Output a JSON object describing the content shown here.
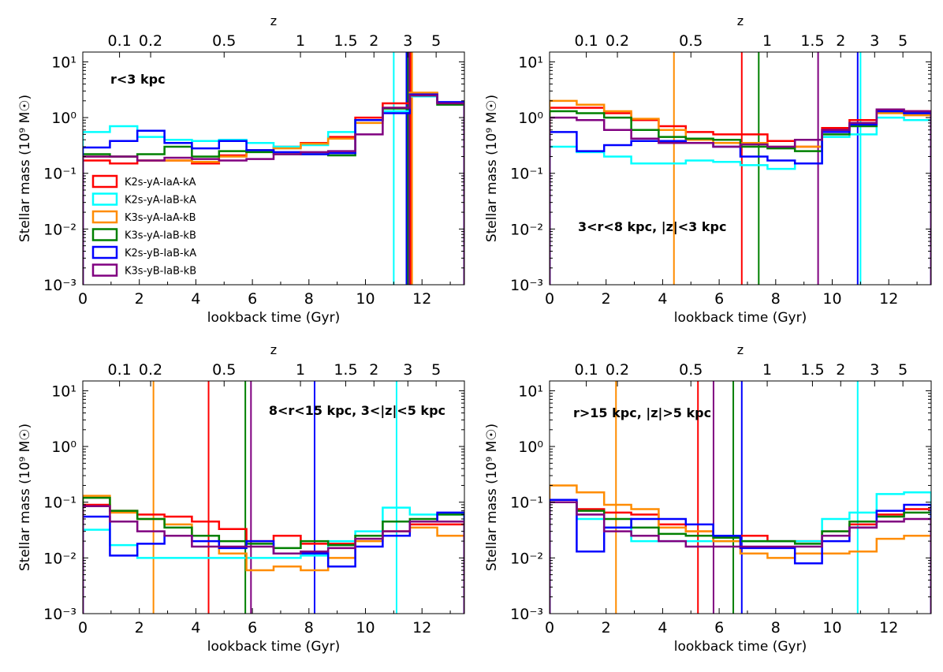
{
  "colors": {
    "K2s-yA-IaA-kA": "#ff0000",
    "K2s-yA-IaB-kA": "#00ffff",
    "K3s-yA-IaA-kB": "#ff8c00",
    "K3s-yA-IaB-kB": "#008000",
    "K2s-yB-IaB-kA": "#0000ff",
    "K3s-yB-IaB-kB": "#800080"
  },
  "chart_data": [
    {
      "type": "line",
      "drawstyle": "steps",
      "title": "r<3 kpc",
      "xlabel": "lookback time (Gyr)",
      "ylabel": "Stellar mass (10⁹ M☉)",
      "xlim": [
        0,
        13.5
      ],
      "ylim": [
        0.001,
        15
      ],
      "yscale": "log",
      "xticks": [
        0,
        2,
        4,
        6,
        8,
        10,
        12
      ],
      "yticks": [
        "10⁻³",
        "10⁻²",
        "10⁻¹",
        "10⁰",
        "10¹"
      ],
      "top_axis": {
        "label": "z",
        "ticks": [
          {
            "label": "0.1",
            "t": 1.3
          },
          {
            "label": "0.2",
            "t": 2.4
          },
          {
            "label": "0.5",
            "t": 5.0
          },
          {
            "label": "1",
            "t": 7.7
          },
          {
            "label": "1.5",
            "t": 9.3
          },
          {
            "label": "2",
            "t": 10.3
          },
          {
            "label": "3",
            "t": 11.5
          },
          {
            "label": "5",
            "t": 12.5
          }
        ]
      },
      "legend": {
        "placement": "middle-left",
        "entries": [
          "K2s-yA-IaA-kA",
          "K2s-yA-IaB-kA",
          "K3s-yA-IaA-kB",
          "K3s-yA-IaB-kB",
          "K2s-yB-IaB-kA",
          "K3s-yB-IaB-kB"
        ]
      },
      "bin_edges": [
        0,
        0.96,
        1.93,
        2.89,
        3.86,
        4.82,
        5.79,
        6.75,
        7.71,
        8.68,
        9.64,
        10.61,
        11.57,
        12.54,
        13.5
      ],
      "series": [
        {
          "name": "K2s-yA-IaA-kA",
          "values": [
            0.17,
            0.15,
            0.17,
            0.17,
            0.15,
            0.21,
            0.26,
            0.3,
            0.35,
            0.45,
            1.0,
            1.8,
            2.7,
            1.8
          ],
          "vline": 11.6
        },
        {
          "name": "K2s-yA-IaB-kA",
          "values": [
            0.55,
            0.7,
            0.45,
            0.4,
            0.38,
            0.4,
            0.35,
            0.3,
            0.32,
            0.55,
            0.9,
            1.3,
            2.4,
            1.7
          ],
          "vline": 11.0
        },
        {
          "name": "K3s-yA-IaA-kB",
          "values": [
            0.2,
            0.2,
            0.17,
            0.17,
            0.16,
            0.2,
            0.26,
            0.28,
            0.34,
            0.42,
            0.8,
            1.5,
            2.8,
            1.8
          ],
          "vline": 11.65
        },
        {
          "name": "K3s-yA-IaB-kB",
          "values": [
            0.22,
            0.2,
            0.22,
            0.3,
            0.2,
            0.25,
            0.24,
            0.22,
            0.22,
            0.21,
            0.9,
            1.45,
            2.5,
            1.7
          ],
          "vline": 11.5
        },
        {
          "name": "K2s-yB-IaB-kA",
          "values": [
            0.29,
            0.38,
            0.58,
            0.35,
            0.28,
            0.38,
            0.26,
            0.24,
            0.22,
            0.23,
            0.9,
            1.2,
            2.6,
            1.9
          ],
          "vline": 11.45
        },
        {
          "name": "K3s-yB-IaB-kB",
          "values": [
            0.2,
            0.2,
            0.17,
            0.19,
            0.18,
            0.17,
            0.18,
            0.22,
            0.24,
            0.25,
            0.5,
            1.5,
            2.5,
            1.8
          ],
          "vline": 11.55
        }
      ]
    },
    {
      "type": "line",
      "drawstyle": "steps",
      "title": "3<r<8 kpc, |z|<3 kpc",
      "xlabel": "lookback time (Gyr)",
      "ylabel": "Stellar mass (10⁹ M☉)",
      "xlim": [
        0,
        13.5
      ],
      "ylim": [
        0.001,
        15
      ],
      "yscale": "log",
      "xticks": [
        0,
        2,
        4,
        6,
        8,
        10,
        12
      ],
      "yticks": [
        "10⁻³",
        "10⁻²",
        "10⁻¹",
        "10⁰",
        "10¹"
      ],
      "top_axis": {
        "label": "z",
        "ticks": [
          {
            "label": "0.1",
            "t": 1.3
          },
          {
            "label": "0.2",
            "t": 2.4
          },
          {
            "label": "0.5",
            "t": 5.0
          },
          {
            "label": "1",
            "t": 7.7
          },
          {
            "label": "1.5",
            "t": 9.3
          },
          {
            "label": "2",
            "t": 10.3
          },
          {
            "label": "3",
            "t": 11.5
          },
          {
            "label": "5",
            "t": 12.5
          }
        ]
      },
      "bin_edges": [
        0,
        0.96,
        1.93,
        2.89,
        3.86,
        4.82,
        5.79,
        6.75,
        7.71,
        8.68,
        9.64,
        10.61,
        11.57,
        12.54,
        13.5
      ],
      "series": [
        {
          "name": "K2s-yA-IaA-kA",
          "values": [
            1.5,
            1.5,
            1.2,
            0.9,
            0.7,
            0.55,
            0.5,
            0.5,
            0.38,
            0.3,
            0.65,
            0.9,
            1.3,
            1.3
          ],
          "vline": 6.8
        },
        {
          "name": "K2s-yA-IaB-kA",
          "values": [
            0.3,
            0.24,
            0.2,
            0.15,
            0.15,
            0.17,
            0.16,
            0.14,
            0.12,
            0.15,
            0.45,
            0.5,
            1.0,
            0.9
          ],
          "vline": 11.0
        },
        {
          "name": "K3s-yA-IaA-kB",
          "values": [
            2.0,
            1.7,
            1.3,
            0.95,
            0.6,
            0.4,
            0.35,
            0.35,
            0.3,
            0.3,
            0.6,
            0.8,
            1.2,
            1.1
          ],
          "vline": 4.4
        },
        {
          "name": "K3s-yA-IaB-kB",
          "values": [
            1.3,
            1.2,
            1.0,
            0.6,
            0.45,
            0.42,
            0.4,
            0.3,
            0.28,
            0.25,
            0.5,
            0.7,
            1.3,
            1.2
          ],
          "vline": 7.4
        },
        {
          "name": "K2s-yB-IaB-kA",
          "values": [
            0.55,
            0.25,
            0.32,
            0.38,
            0.38,
            0.35,
            0.3,
            0.2,
            0.17,
            0.15,
            0.55,
            0.75,
            1.3,
            1.2
          ],
          "vline": 10.9
        },
        {
          "name": "K3s-yB-IaB-kB",
          "values": [
            1.0,
            0.9,
            0.6,
            0.42,
            0.35,
            0.35,
            0.3,
            0.33,
            0.3,
            0.4,
            0.6,
            0.8,
            1.4,
            1.3
          ],
          "vline": 9.5
        }
      ]
    },
    {
      "type": "line",
      "drawstyle": "steps",
      "title": "8<r<15 kpc, 3<|z|<5 kpc",
      "xlabel": "lookback time (Gyr)",
      "ylabel": "Stellar mass (10⁹ M☉)",
      "xlim": [
        0,
        13.5
      ],
      "ylim": [
        0.001,
        15
      ],
      "yscale": "log",
      "xticks": [
        0,
        2,
        4,
        6,
        8,
        10,
        12
      ],
      "yticks": [
        "10⁻³",
        "10⁻²",
        "10⁻¹",
        "10⁰",
        "10¹"
      ],
      "top_axis": {
        "label": "z",
        "ticks": [
          {
            "label": "0.1",
            "t": 1.3
          },
          {
            "label": "0.2",
            "t": 2.4
          },
          {
            "label": "0.5",
            "t": 5.0
          },
          {
            "label": "1",
            "t": 7.7
          },
          {
            "label": "1.5",
            "t": 9.3
          },
          {
            "label": "2",
            "t": 10.3
          },
          {
            "label": "3",
            "t": 11.5
          },
          {
            "label": "5",
            "t": 12.5
          }
        ]
      },
      "bin_edges": [
        0,
        0.96,
        1.93,
        2.89,
        3.86,
        4.82,
        5.79,
        6.75,
        7.71,
        8.68,
        9.64,
        10.61,
        11.57,
        12.54,
        13.5
      ],
      "series": [
        {
          "name": "K2s-yA-IaA-kA",
          "values": [
            0.09,
            0.07,
            0.06,
            0.055,
            0.045,
            0.033,
            0.02,
            0.025,
            0.018,
            0.018,
            0.025,
            0.03,
            0.04,
            0.04
          ],
          "vline": 4.45
        },
        {
          "name": "K2s-yA-IaB-kA",
          "values": [
            0.032,
            0.017,
            0.01,
            0.01,
            0.01,
            0.01,
            0.01,
            0.01,
            0.011,
            0.02,
            0.03,
            0.08,
            0.06,
            0.06
          ],
          "vline": 11.1
        },
        {
          "name": "K3s-yA-IaA-kB",
          "values": [
            0.13,
            0.065,
            0.05,
            0.04,
            0.025,
            0.012,
            0.006,
            0.007,
            0.006,
            0.01,
            0.02,
            0.03,
            0.035,
            0.025
          ],
          "vline": 2.5
        },
        {
          "name": "K3s-yA-IaB-kB",
          "values": [
            0.12,
            0.07,
            0.05,
            0.035,
            0.025,
            0.02,
            0.018,
            0.015,
            0.02,
            0.017,
            0.025,
            0.045,
            0.05,
            0.06
          ],
          "vline": 5.75
        },
        {
          "name": "K2s-yB-IaB-kA",
          "values": [
            0.055,
            0.011,
            0.018,
            0.025,
            0.02,
            0.015,
            0.02,
            0.012,
            0.012,
            0.007,
            0.016,
            0.025,
            0.045,
            0.065
          ],
          "vline": 8.2
        },
        {
          "name": "K3s-yB-IaB-kB",
          "values": [
            0.085,
            0.045,
            0.03,
            0.025,
            0.016,
            0.016,
            0.016,
            0.012,
            0.013,
            0.015,
            0.022,
            0.03,
            0.045,
            0.045
          ],
          "vline": 5.95
        }
      ]
    },
    {
      "type": "line",
      "drawstyle": "steps",
      "title": "r>15 kpc, |z|>5 kpc",
      "xlabel": "lookback time (Gyr)",
      "ylabel": "Stellar mass (10⁹ M☉)",
      "xlim": [
        0,
        13.5
      ],
      "ylim": [
        0.001,
        15
      ],
      "yscale": "log",
      "xticks": [
        0,
        2,
        4,
        6,
        8,
        10,
        12
      ],
      "yticks": [
        "10⁻³",
        "10⁻²",
        "10⁻¹",
        "10⁰",
        "10¹"
      ],
      "top_axis": {
        "label": "z",
        "ticks": [
          {
            "label": "0.1",
            "t": 1.3
          },
          {
            "label": "0.2",
            "t": 2.4
          },
          {
            "label": "0.5",
            "t": 5.0
          },
          {
            "label": "1",
            "t": 7.7
          },
          {
            "label": "1.5",
            "t": 9.3
          },
          {
            "label": "2",
            "t": 10.3
          },
          {
            "label": "3",
            "t": 11.5
          },
          {
            "label": "5",
            "t": 12.5
          }
        ]
      },
      "bin_edges": [
        0,
        0.96,
        1.93,
        2.89,
        3.86,
        4.82,
        5.79,
        6.75,
        7.71,
        8.68,
        9.64,
        10.61,
        11.57,
        12.54,
        13.5
      ],
      "series": [
        {
          "name": "K2s-yA-IaA-kA",
          "values": [
            0.1,
            0.075,
            0.065,
            0.06,
            0.04,
            0.03,
            0.025,
            0.025,
            0.02,
            0.02,
            0.03,
            0.04,
            0.06,
            0.075
          ],
          "vline": 5.25
        },
        {
          "name": "K2s-yA-IaB-kA",
          "values": [
            0.11,
            0.05,
            0.035,
            0.02,
            0.02,
            0.02,
            0.02,
            0.02,
            0.02,
            0.02,
            0.05,
            0.065,
            0.14,
            0.15
          ],
          "vline": 10.9
        },
        {
          "name": "K3s-yA-IaA-kB",
          "values": [
            0.2,
            0.15,
            0.09,
            0.075,
            0.035,
            0.03,
            0.02,
            0.012,
            0.01,
            0.012,
            0.012,
            0.013,
            0.022,
            0.025
          ],
          "vline": 2.35
        },
        {
          "name": "K3s-yA-IaB-kB",
          "values": [
            0.1,
            0.07,
            0.05,
            0.035,
            0.027,
            0.025,
            0.023,
            0.02,
            0.02,
            0.018,
            0.03,
            0.045,
            0.055,
            0.065
          ],
          "vline": 6.5
        },
        {
          "name": "K2s-yB-IaB-kA",
          "values": [
            0.11,
            0.013,
            0.035,
            0.05,
            0.05,
            0.04,
            0.025,
            0.015,
            0.015,
            0.008,
            0.02,
            0.035,
            0.07,
            0.09
          ],
          "vline": 6.8
        },
        {
          "name": "K3s-yB-IaB-kB",
          "values": [
            0.1,
            0.06,
            0.03,
            0.025,
            0.02,
            0.016,
            0.016,
            0.016,
            0.016,
            0.016,
            0.025,
            0.035,
            0.045,
            0.05
          ],
          "vline": 5.8
        }
      ]
    }
  ]
}
